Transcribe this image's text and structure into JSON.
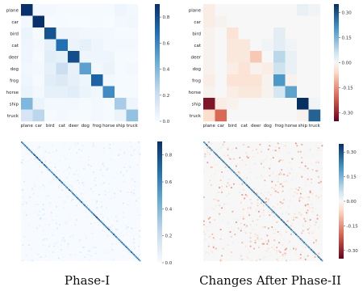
{
  "captions": [
    "Phase-I",
    "Changes After Phase-II"
  ],
  "colors": {
    "blues_low": "#f7fbff",
    "blues_high": "#08306b",
    "div_neg": "#67001f",
    "div_mid": "#f7f7f7",
    "div_pos": "#053061"
  },
  "chart_data": [
    {
      "type": "heatmap",
      "title": "",
      "xlabel": "",
      "ylabel": "",
      "categories": [
        "plane",
        "car",
        "bird",
        "cat",
        "deer",
        "dog",
        "frog",
        "horse",
        "ship",
        "truck"
      ],
      "colorbar": {
        "range": [
          0.0,
          0.9
        ],
        "ticks": [
          "0.8",
          "0.6",
          "0.4",
          "0.2",
          "0.0"
        ],
        "tick_values": [
          0.8,
          0.6,
          0.4,
          0.2,
          0.0
        ]
      },
      "matrix": [
        [
          0.9,
          0.02,
          0.02,
          0.01,
          0.01,
          0.01,
          0.01,
          0.01,
          0.04,
          0.02
        ],
        [
          0.02,
          0.92,
          0.0,
          0.01,
          0.0,
          0.0,
          0.01,
          0.0,
          0.02,
          0.03
        ],
        [
          0.05,
          0.01,
          0.78,
          0.04,
          0.04,
          0.03,
          0.03,
          0.02,
          0.01,
          0.01
        ],
        [
          0.04,
          0.02,
          0.08,
          0.68,
          0.05,
          0.08,
          0.04,
          0.02,
          0.02,
          0.02
        ],
        [
          0.04,
          0.01,
          0.1,
          0.08,
          0.8,
          0.04,
          0.04,
          0.04,
          0.01,
          0.01
        ],
        [
          0.03,
          0.02,
          0.08,
          0.2,
          0.07,
          0.5,
          0.03,
          0.05,
          0.01,
          0.02
        ],
        [
          0.04,
          0.01,
          0.1,
          0.12,
          0.08,
          0.04,
          0.72,
          0.02,
          0.01,
          0.01
        ],
        [
          0.05,
          0.02,
          0.08,
          0.08,
          0.1,
          0.05,
          0.03,
          0.58,
          0.01,
          0.01
        ],
        [
          0.4,
          0.05,
          0.02,
          0.02,
          0.02,
          0.01,
          0.02,
          0.01,
          0.3,
          0.04
        ],
        [
          0.15,
          0.25,
          0.01,
          0.02,
          0.01,
          0.01,
          0.02,
          0.01,
          0.05,
          0.35
        ]
      ]
    },
    {
      "type": "heatmap",
      "title": "",
      "xlabel": "",
      "ylabel": "",
      "categories": [
        "plane",
        "car",
        "bird",
        "cat",
        "deer",
        "dog",
        "frog",
        "horse",
        "ship",
        "truck"
      ],
      "colorbar": {
        "range": [
          -0.35,
          0.35
        ],
        "ticks": [
          "0.30",
          "0.15",
          "0.00",
          "-0.15",
          "-0.30"
        ],
        "tick_values": [
          0.3,
          0.15,
          0.0,
          -0.15,
          -0.3
        ]
      },
      "matrix": [
        [
          -0.02,
          0.0,
          0.0,
          0.0,
          0.0,
          0.0,
          0.0,
          0.0,
          0.02,
          0.01
        ],
        [
          -0.02,
          -0.01,
          0.0,
          0.0,
          0.0,
          0.0,
          0.0,
          0.0,
          0.0,
          0.0
        ],
        [
          -0.01,
          0.0,
          -0.04,
          0.0,
          0.0,
          0.0,
          0.03,
          0.0,
          0.0,
          0.0
        ],
        [
          -0.01,
          0.0,
          -0.03,
          -0.03,
          0.0,
          0.01,
          0.03,
          0.01,
          0.0,
          0.0
        ],
        [
          -0.01,
          0.0,
          -0.03,
          -0.03,
          -0.08,
          0.0,
          0.08,
          0.02,
          0.0,
          0.0
        ],
        [
          -0.01,
          0.0,
          -0.02,
          -0.04,
          -0.01,
          -0.02,
          0.06,
          0.02,
          0.0,
          0.0
        ],
        [
          -0.02,
          0.0,
          -0.04,
          -0.04,
          -0.04,
          -0.01,
          0.2,
          -0.01,
          0.0,
          0.0
        ],
        [
          -0.01,
          0.0,
          -0.02,
          -0.03,
          -0.03,
          -0.01,
          0.05,
          0.18,
          0.0,
          0.0
        ],
        [
          -0.32,
          -0.02,
          -0.01,
          0.0,
          0.0,
          0.0,
          0.0,
          0.0,
          0.35,
          0.01
        ],
        [
          -0.05,
          -0.2,
          0.0,
          0.0,
          0.0,
          0.0,
          0.0,
          0.0,
          -0.01,
          0.28
        ]
      ]
    },
    {
      "type": "heatmap",
      "title": "",
      "xlabel": "",
      "ylabel": "",
      "categories": [],
      "colorbar": {
        "range": [
          0.0,
          0.9
        ],
        "ticks": [
          "0.8",
          "0.6",
          "0.4",
          "0.2",
          "0.0"
        ],
        "tick_values": [
          0.8,
          0.6,
          0.4,
          0.2,
          0.0
        ]
      },
      "matrix_size": 100,
      "diagonal_range": [
        0.55,
        0.85
      ],
      "off_diagonal_max": 0.15
    },
    {
      "type": "heatmap",
      "title": "",
      "xlabel": "",
      "ylabel": "",
      "categories": [],
      "colorbar": {
        "range": [
          -0.35,
          0.35
        ],
        "ticks": [
          "0.30",
          "0.15",
          "0.00",
          "-0.15",
          "-0.30"
        ],
        "tick_values": [
          0.3,
          0.15,
          0.0,
          -0.15,
          -0.3
        ]
      },
      "matrix_size": 100,
      "diagonal_range": [
        0.2,
        0.3
      ],
      "off_diagonal_range": [
        -0.15,
        0.03
      ]
    }
  ]
}
